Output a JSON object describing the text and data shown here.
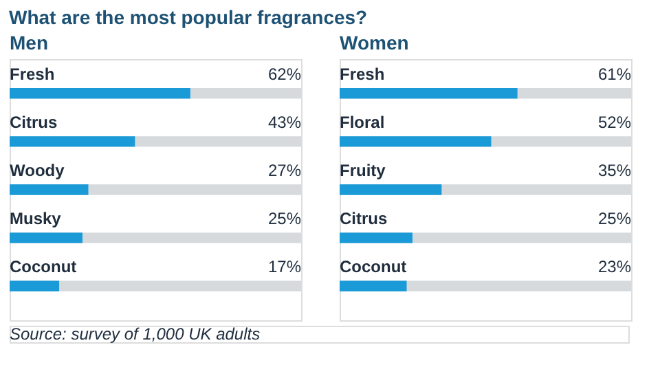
{
  "chart_data": [
    {
      "type": "bar",
      "orientation": "horizontal",
      "title": "Men",
      "annotations": [
        "What are the most popular fragrances?"
      ],
      "categories": [
        "Fresh",
        "Citrus",
        "Woody",
        "Musky",
        "Coconut"
      ],
      "values": [
        62,
        43,
        27,
        25,
        17
      ],
      "value_labels": [
        "62%",
        "43%",
        "27%",
        "25%",
        "17%"
      ],
      "color": "#1a9bd7",
      "xlim": [
        0,
        100
      ],
      "tick_labels": false
    },
    {
      "type": "bar",
      "orientation": "horizontal",
      "title": "Women",
      "annotations": [
        "Source: survey of 1,000 UK adults"
      ],
      "categories": [
        "Fresh",
        "Floral",
        "Fruity",
        "Citrus",
        "Coconut"
      ],
      "values": [
        61,
        52,
        35,
        25,
        23
      ],
      "value_labels": [
        "61%",
        "52%",
        "35%",
        "25%",
        "23%"
      ],
      "color": "#1a9bd7",
      "xlim": [
        0,
        100
      ],
      "tick_labels": false
    }
  ]
}
